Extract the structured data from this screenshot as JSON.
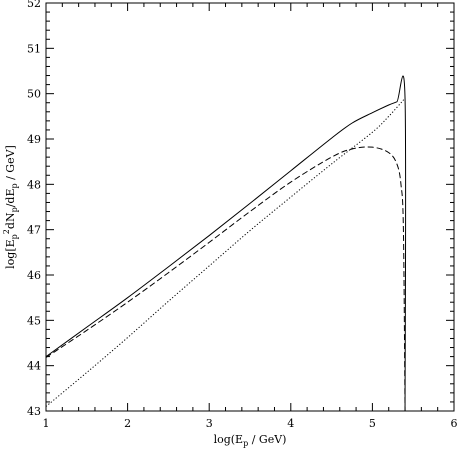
{
  "chart_data": {
    "type": "line",
    "xlabel_parts": [
      "log(E",
      "p",
      " / GeV)"
    ],
    "ylabel_parts": [
      "log[E",
      "p",
      "2",
      "dN",
      "p",
      "/dE",
      "p",
      " / GeV]"
    ],
    "xlim": [
      1,
      6
    ],
    "ylim": [
      43,
      52
    ],
    "x_ticks": [
      "1",
      "2",
      "3",
      "4",
      "5",
      "6"
    ],
    "y_ticks": [
      "43",
      "44",
      "45",
      "46",
      "47",
      "48",
      "49",
      "50",
      "51",
      "52"
    ],
    "grid": false,
    "series": [
      {
        "style": "solid",
        "points": [
          [
            1.0,
            44.2
          ],
          [
            1.5,
            44.85
          ],
          [
            2.0,
            45.5
          ],
          [
            2.5,
            46.18
          ],
          [
            3.0,
            46.87
          ],
          [
            3.5,
            47.58
          ],
          [
            4.0,
            48.3
          ],
          [
            4.5,
            49.02
          ],
          [
            4.75,
            49.35
          ],
          [
            5.0,
            49.58
          ],
          [
            5.2,
            49.75
          ],
          [
            5.3,
            49.82
          ],
          [
            5.4,
            49.9
          ],
          [
            5.4,
            43.0
          ]
        ]
      },
      {
        "style": "dashed",
        "points": [
          [
            1.0,
            44.18
          ],
          [
            1.5,
            44.78
          ],
          [
            2.0,
            45.4
          ],
          [
            2.5,
            46.05
          ],
          [
            3.0,
            46.72
          ],
          [
            3.5,
            47.4
          ],
          [
            4.0,
            48.05
          ],
          [
            4.5,
            48.6
          ],
          [
            4.75,
            48.78
          ],
          [
            5.0,
            48.82
          ],
          [
            5.2,
            48.7
          ],
          [
            5.3,
            48.45
          ],
          [
            5.35,
            48.0
          ],
          [
            5.38,
            47.0
          ],
          [
            5.4,
            43.0
          ]
        ]
      },
      {
        "style": "dotted",
        "points": [
          [
            1.0,
            43.1
          ],
          [
            1.5,
            43.85
          ],
          [
            2.0,
            44.62
          ],
          [
            2.5,
            45.42
          ],
          [
            3.0,
            46.2
          ],
          [
            3.5,
            46.98
          ],
          [
            4.0,
            47.72
          ],
          [
            4.5,
            48.45
          ],
          [
            5.0,
            49.15
          ],
          [
            5.2,
            49.5
          ],
          [
            5.4,
            49.9
          ]
        ]
      }
    ]
  }
}
